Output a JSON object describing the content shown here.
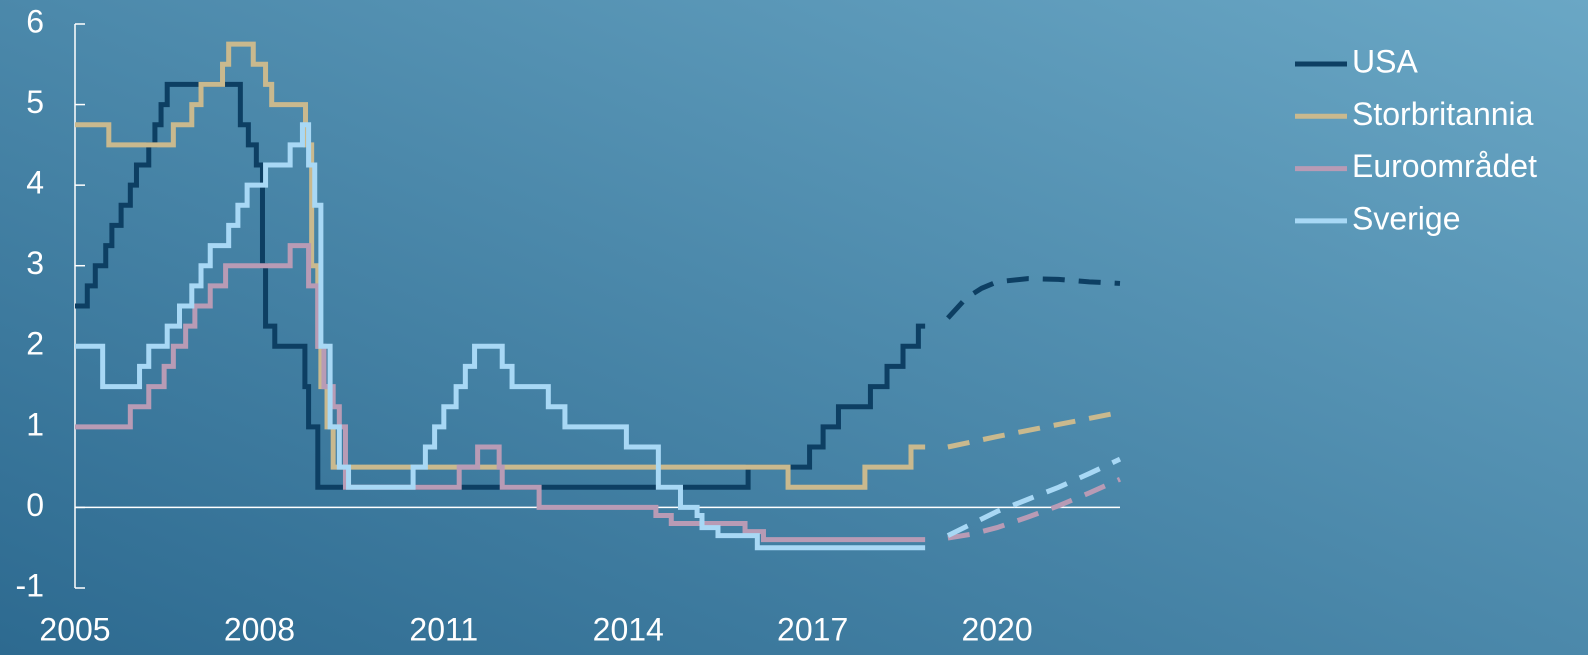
{
  "chart_data": {
    "type": "line",
    "step": "post",
    "xlim": [
      2005,
      2022
    ],
    "ylim": [
      -1,
      6
    ],
    "xticks": [
      2005,
      2008,
      2011,
      2014,
      2017,
      2020
    ],
    "yticks": [
      -1,
      0,
      1,
      2,
      3,
      4,
      5,
      6
    ],
    "legend": "top-right",
    "series": [
      {
        "name": "USA",
        "color": "#0d3f63",
        "x": [
          2005.0,
          2005.2,
          2005.33,
          2005.5,
          2005.6,
          2005.75,
          2005.9,
          2006.0,
          2006.2,
          2006.3,
          2006.4,
          2006.5,
          2007.69,
          2007.82,
          2007.95,
          2008.05,
          2008.1,
          2008.25,
          2008.74,
          2008.8,
          2008.95,
          2015.95,
          2016.95,
          2017.17,
          2017.42,
          2017.94,
          2018.21,
          2018.47,
          2018.72,
          2018.83
        ],
        "values": [
          2.5,
          2.75,
          3.0,
          3.25,
          3.5,
          3.75,
          4.0,
          4.25,
          4.5,
          4.75,
          5.0,
          5.25,
          4.75,
          4.5,
          4.25,
          3.0,
          2.25,
          2.0,
          1.5,
          1.0,
          0.25,
          0.5,
          0.75,
          1.0,
          1.25,
          1.5,
          1.75,
          2.0,
          2.25,
          2.25
        ],
        "forecast_x": [
          2019.2,
          2019.5,
          2019.75,
          2020.0,
          2020.5,
          2021.0,
          2021.5,
          2022.0
        ],
        "forecast_values": [
          2.35,
          2.6,
          2.72,
          2.8,
          2.84,
          2.83,
          2.8,
          2.78
        ]
      },
      {
        "name": "Storbritannia",
        "color": "#c9b98e",
        "x": [
          2005.0,
          2005.55,
          2006.6,
          2006.9,
          2007.05,
          2007.4,
          2007.5,
          2007.9,
          2008.1,
          2008.2,
          2008.75,
          2008.85,
          2008.95,
          2009.0,
          2009.1,
          2009.2,
          2016.6,
          2017.85,
          2018.6,
          2018.83
        ],
        "values": [
          4.75,
          4.5,
          4.75,
          5.0,
          5.25,
          5.5,
          5.75,
          5.5,
          5.25,
          5.0,
          4.5,
          3.0,
          2.0,
          1.5,
          1.0,
          0.5,
          0.25,
          0.5,
          0.75,
          0.75
        ],
        "forecast_x": [
          2019.2,
          2020.0,
          2021.0,
          2022.0
        ],
        "forecast_values": [
          0.75,
          0.88,
          1.03,
          1.18
        ]
      },
      {
        "name": "Euroområdet",
        "color": "#b89bb5",
        "x": [
          2005.0,
          2005.9,
          2006.2,
          2006.45,
          2006.6,
          2006.8,
          2006.95,
          2007.2,
          2007.45,
          2008.5,
          2008.8,
          2008.95,
          2009.05,
          2009.2,
          2009.3,
          2009.4,
          2011.25,
          2011.55,
          2011.9,
          2011.95,
          2012.55,
          2014.45,
          2014.7,
          2015.9,
          2016.2,
          2018.83
        ],
        "values": [
          1.0,
          1.25,
          1.5,
          1.75,
          2.0,
          2.25,
          2.5,
          2.75,
          3.0,
          3.25,
          2.75,
          2.0,
          1.5,
          1.25,
          1.0,
          0.25,
          0.5,
          0.75,
          0.5,
          0.25,
          0.0,
          -0.1,
          -0.2,
          -0.3,
          -0.4,
          -0.4
        ],
        "forecast_x": [
          2019.2,
          2019.6,
          2020.0,
          2020.5,
          2021.0,
          2021.5,
          2022.0
        ],
        "forecast_values": [
          -0.38,
          -0.33,
          -0.25,
          -0.12,
          0.02,
          0.18,
          0.35
        ]
      },
      {
        "name": "Sverige",
        "color": "#a8d8f5",
        "x": [
          2005.0,
          2005.45,
          2006.05,
          2006.2,
          2006.5,
          2006.7,
          2006.9,
          2007.05,
          2007.2,
          2007.5,
          2007.65,
          2007.8,
          2008.1,
          2008.5,
          2008.7,
          2008.8,
          2008.9,
          2009.0,
          2009.15,
          2009.3,
          2009.45,
          2010.5,
          2010.7,
          2010.85,
          2011.0,
          2011.2,
          2011.35,
          2011.5,
          2011.95,
          2012.11,
          2012.7,
          2012.97,
          2013.97,
          2014.49,
          2014.85,
          2015.12,
          2015.2,
          2015.46,
          2016.1,
          2018.83
        ],
        "values": [
          2.0,
          1.5,
          1.75,
          2.0,
          2.25,
          2.5,
          2.75,
          3.0,
          3.25,
          3.5,
          3.75,
          4.0,
          4.25,
          4.5,
          4.75,
          4.25,
          3.75,
          2.0,
          1.0,
          0.5,
          0.25,
          0.5,
          0.75,
          1.0,
          1.25,
          1.5,
          1.75,
          2.0,
          1.75,
          1.5,
          1.25,
          1.0,
          0.75,
          0.25,
          0.0,
          -0.1,
          -0.25,
          -0.35,
          -0.5,
          -0.5
        ],
        "forecast_x": [
          2019.2,
          2019.6,
          2020.0,
          2020.5,
          2021.0,
          2021.5,
          2022.0
        ],
        "forecast_values": [
          -0.35,
          -0.2,
          -0.05,
          0.1,
          0.25,
          0.42,
          0.6
        ]
      }
    ]
  }
}
